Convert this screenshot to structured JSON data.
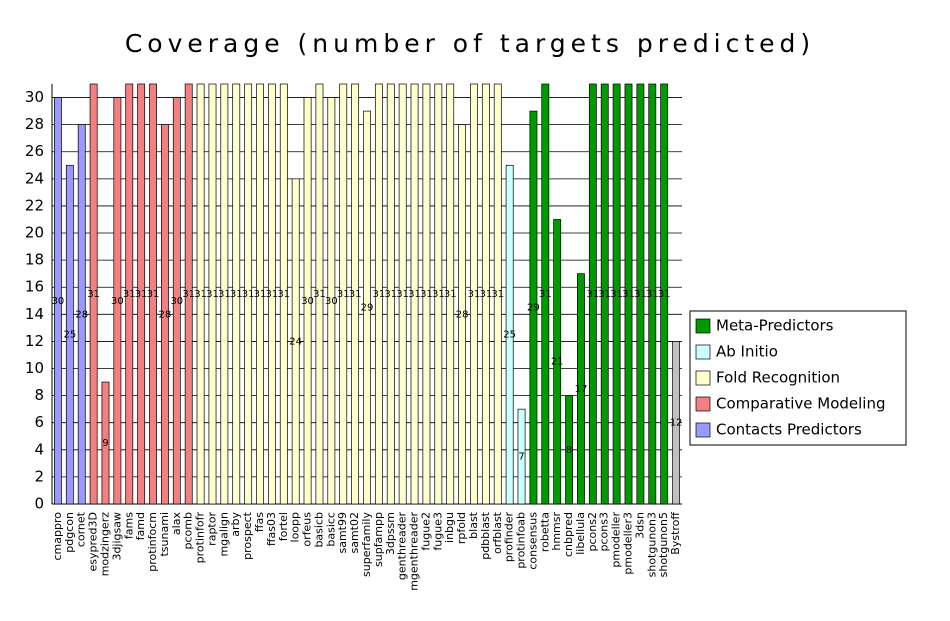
{
  "chart_data": {
    "type": "bar",
    "title": "Coverage (number of targets predicted)",
    "ylim": [
      0,
      31
    ],
    "yticks": [
      0,
      2,
      4,
      6,
      8,
      10,
      12,
      14,
      16,
      18,
      20,
      22,
      24,
      26,
      28,
      30
    ],
    "grid": true,
    "legend": "right",
    "series": [
      {
        "name": "Contacts Predictors",
        "color": "#9999ff",
        "categories": [
          "cmappro",
          "pdgcon",
          "cornet"
        ],
        "values": [
          30,
          25,
          28
        ]
      },
      {
        "name": "Comparative Modeling",
        "color": "#f28080",
        "categories": [
          "esypred3D",
          "modzingerz",
          "3djigsaw",
          "fams",
          "famd",
          "protinfocm",
          "tsunami",
          "alax",
          "pcomb"
        ],
        "values": [
          31,
          9,
          30,
          31,
          31,
          31,
          28,
          30,
          31
        ]
      },
      {
        "name": "Fold Recognition",
        "color": "#ffffcc",
        "categories": [
          "protinfofr",
          "raptor",
          "mgalign",
          "arby",
          "prospect",
          "ffas",
          "ffas03",
          "fortel",
          "loopp",
          "orfeus",
          "basicb",
          "basicc",
          "samt99",
          "samt02",
          "superfamily",
          "supfampp",
          "3dpssm",
          "genthreader",
          "mgenthreader",
          "fugue2",
          "fugue3",
          "inbgu",
          "rpfold",
          "blast",
          "pdbblast",
          "orfblast"
        ],
        "values": [
          31,
          31,
          31,
          31,
          31,
          31,
          31,
          31,
          24,
          30,
          31,
          30,
          31,
          31,
          29,
          31,
          31,
          31,
          31,
          31,
          31,
          31,
          28,
          31,
          31,
          31
        ]
      },
      {
        "name": "Ab Initio",
        "color": "#ccffff",
        "categories": [
          "profinder",
          "protinfoab"
        ],
        "values": [
          25,
          7
        ]
      },
      {
        "name": "Meta-Predictors",
        "color": "#009900",
        "categories": [
          "consensus",
          "robetta",
          "hmmsr",
          "cnbpred",
          "libellula",
          "pcons2",
          "pcons3",
          "pmodeller",
          "pmodeller3",
          "3dsn",
          "shotgunon3",
          "shotgunon5"
        ],
        "values": [
          29,
          31,
          21,
          8,
          17,
          31,
          31,
          31,
          31,
          31,
          31,
          31
        ]
      },
      {
        "color": "#c0c0c0",
        "categories": [
          "Bystroff"
        ],
        "values": [
          12
        ]
      }
    ]
  }
}
